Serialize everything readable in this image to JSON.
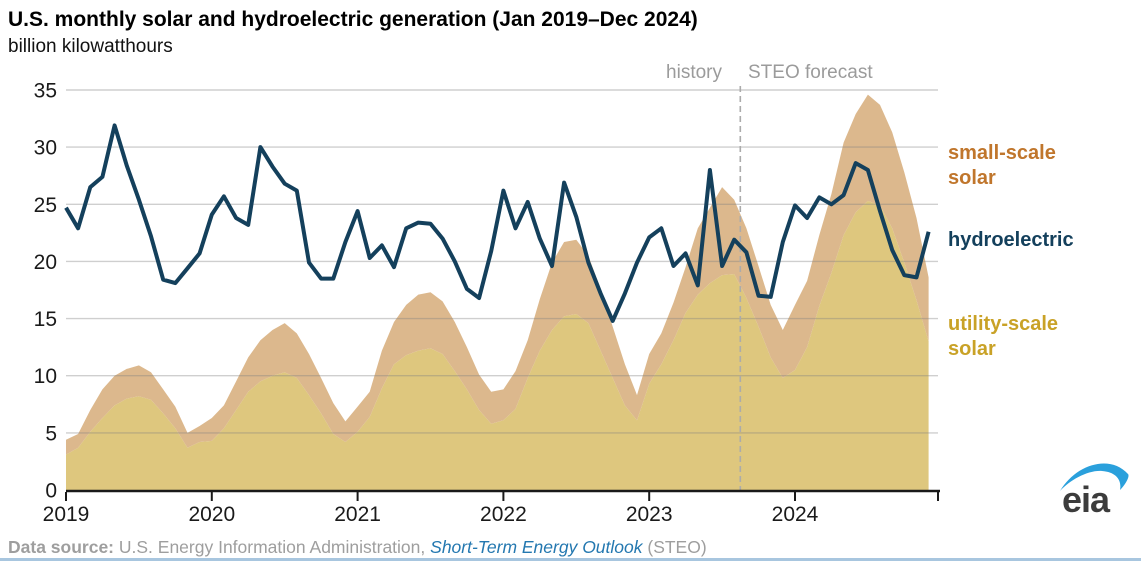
{
  "header": {
    "title": "U.S. monthly solar and hydroelectric generation (Jan 2019–Dec 2024)",
    "subtitle": "billion kilowatthours"
  },
  "annotations": {
    "history": "history",
    "forecast": "STEO forecast"
  },
  "legend": {
    "small_scale": "small-scale solar",
    "hydro": "hydroelectric",
    "utility_scale": "utility-scale solar"
  },
  "footer": {
    "source_label": "Data source:",
    "source_text": " U.S. Energy Information Administration, ",
    "source_link": "Short-Term Energy Outlook",
    "source_suffix": " (STEO)"
  },
  "logo": {
    "text": "eia"
  },
  "colors": {
    "hydro_line": "#14405C",
    "utility_fill": "#DEC77E",
    "small_fill": "#DCB88D",
    "small_scale_text": "#C0762C",
    "hydro_text": "#14405C",
    "utility_text": "#C9A227",
    "gridline": "rgba(128,128,128,0.38)",
    "divider": "#ABABAB",
    "axis": "#1a1a1a",
    "annotation_gray": "#9b9b9b",
    "source_gray": "#9e9e9e",
    "link_blue": "#2478B0",
    "rule_blue": "#A8C6DF",
    "logo_swoosh": "#2AA0DC",
    "logo_text": "#3C3C3C"
  },
  "chart_data": {
    "type": "area",
    "title": "U.S. monthly solar and hydroelectric generation (Jan 2019–Dec 2024)",
    "ylabel": "billion kilowatthours",
    "ylim": [
      0,
      35
    ],
    "y_ticks": [
      0,
      5,
      10,
      15,
      20,
      25,
      30,
      35
    ],
    "x_years": [
      "2019",
      "2020",
      "2021",
      "2022",
      "2023",
      "2024"
    ],
    "months_per_year": 12,
    "forecast_divider_month_index": 55.5,
    "legend_position": "right",
    "grid": true,
    "series": [
      {
        "name": "utility-scale solar",
        "type": "area",
        "stack_order": 1,
        "values": [
          3.1,
          3.7,
          5.1,
          6.3,
          7.4,
          8.0,
          8.2,
          7.9,
          6.7,
          5.4,
          3.7,
          4.2,
          4.3,
          5.4,
          7.0,
          8.6,
          9.5,
          10.0,
          10.3,
          9.8,
          8.3,
          6.7,
          4.9,
          4.2,
          5.1,
          6.4,
          8.9,
          11.0,
          11.8,
          12.2,
          12.4,
          11.9,
          10.4,
          8.8,
          7.0,
          5.8,
          6.1,
          7.1,
          9.8,
          12.2,
          14.0,
          15.2,
          15.4,
          14.6,
          12.2,
          9.8,
          7.4,
          6.1,
          9.3,
          11.0,
          13.1,
          15.5,
          17.1,
          18.1,
          18.8,
          18.9,
          16.8,
          14.3,
          11.6,
          9.8,
          10.5,
          12.5,
          16.1,
          19.0,
          22.3,
          24.3,
          25.3,
          24.9,
          22.9,
          19.9,
          16.6,
          13.0
        ]
      },
      {
        "name": "small-scale solar",
        "type": "area",
        "stack_order": 2,
        "values": [
          1.3,
          1.2,
          1.9,
          2.5,
          2.6,
          2.6,
          2.7,
          2.4,
          2.1,
          1.9,
          1.3,
          1.4,
          2.0,
          2.0,
          2.5,
          3.0,
          3.6,
          4.0,
          4.3,
          3.9,
          3.6,
          3.1,
          2.7,
          1.8,
          2.2,
          2.2,
          3.3,
          3.7,
          4.4,
          4.9,
          4.9,
          4.6,
          4.3,
          3.7,
          3.1,
          2.8,
          2.7,
          3.3,
          3.3,
          4.5,
          5.9,
          6.5,
          6.5,
          5.9,
          5.4,
          4.5,
          3.6,
          2.2,
          2.6,
          2.7,
          3.3,
          4.0,
          5.8,
          6.6,
          7.7,
          6.5,
          6.1,
          5.3,
          4.6,
          4.2,
          5.7,
          5.8,
          6.2,
          6.9,
          8.1,
          8.6,
          9.3,
          8.8,
          8.4,
          7.9,
          7.2,
          5.6
        ]
      },
      {
        "name": "hydroelectric",
        "type": "line",
        "values": [
          24.7,
          22.9,
          26.5,
          27.4,
          31.9,
          28.4,
          25.4,
          22.2,
          18.4,
          18.1,
          19.4,
          20.7,
          24.1,
          25.7,
          23.8,
          23.2,
          30.0,
          28.3,
          26.8,
          26.2,
          19.9,
          18.5,
          18.5,
          21.7,
          24.4,
          20.3,
          21.4,
          19.5,
          22.9,
          23.4,
          23.3,
          22.0,
          20.0,
          17.6,
          16.8,
          20.9,
          26.2,
          22.9,
          25.2,
          22.0,
          19.6,
          26.9,
          23.9,
          19.9,
          17.2,
          14.8,
          17.2,
          19.9,
          22.1,
          22.9,
          19.6,
          20.7,
          17.9,
          28.0,
          19.6,
          21.9,
          20.8,
          17.0,
          16.9,
          21.7,
          24.9,
          23.8,
          25.6,
          25.0,
          25.8,
          28.6,
          28.0,
          24.4,
          21.0,
          18.8,
          18.6,
          22.6
        ]
      }
    ]
  }
}
